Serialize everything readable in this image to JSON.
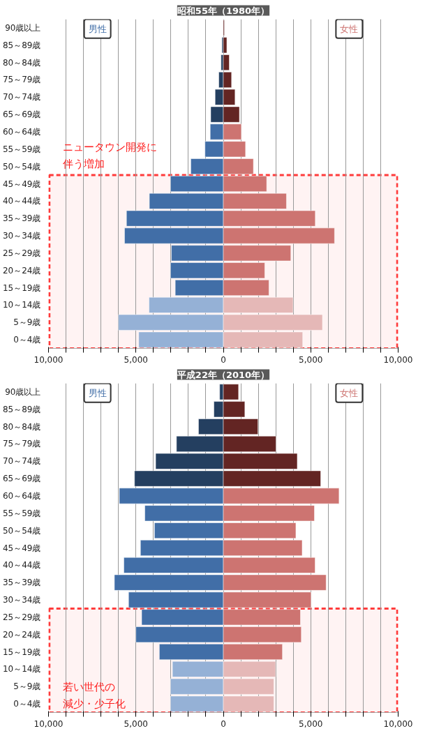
{
  "chart_data": [
    {
      "type": "bar",
      "orientation": "horizontal",
      "title": "昭和55年（1980年）",
      "categories": [
        "90歳以上",
        "85～89歳",
        "80～84歳",
        "75～79歳",
        "70～74歳",
        "65～69歳",
        "60～64歳",
        "55～59歳",
        "50～54歳",
        "45～49歳",
        "40～44歳",
        "35～39歳",
        "30～34歳",
        "25～29歳",
        "20～24歳",
        "15～19歳",
        "10～14歳",
        "5～9歳",
        "0～4歳"
      ],
      "series": [
        {
          "name": "男性",
          "values": [
            null,
            -80,
            -130,
            -260,
            -470,
            -720,
            -750,
            -1050,
            -1860,
            -3020,
            -4230,
            -5540,
            -5650,
            -2970,
            -3020,
            -2750,
            -4250,
            -6000,
            -4840
          ],
          "colors": [
            "#243f60",
            "#243f60",
            "#243f60",
            "#243f60",
            "#243f60",
            "#243f60",
            "#416ea7",
            "#416ea7",
            "#416ea7",
            "#416ea7",
            "#416ea7",
            "#416ea7",
            "#416ea7",
            "#416ea7",
            "#416ea7",
            "#416ea7",
            "#95b1d6",
            "#95b1d6",
            "#95b1d6"
          ]
        },
        {
          "name": "女性",
          "values": [
            60,
            200,
            340,
            470,
            670,
            920,
            1030,
            1270,
            1720,
            2480,
            3610,
            5260,
            6360,
            3860,
            2370,
            2610,
            3990,
            5670,
            4540
          ],
          "colors": [
            "#632523",
            "#632523",
            "#632523",
            "#632523",
            "#632523",
            "#632523",
            "#cd7471",
            "#cd7471",
            "#cd7471",
            "#cd7471",
            "#cd7471",
            "#cd7471",
            "#cd7471",
            "#cd7471",
            "#cd7471",
            "#cd7471",
            "#e5b8b7",
            "#e5b8b7",
            "#e5b8b7"
          ]
        }
      ],
      "xlim": [
        -10000,
        10000
      ],
      "xticks": [
        {
          "value": -10000,
          "label": "10,000"
        },
        {
          "value": -9000,
          "label": null
        },
        {
          "value": -8000,
          "label": null
        },
        {
          "value": -7000,
          "label": null
        },
        {
          "value": -6000,
          "label": null
        },
        {
          "value": -5000,
          "label": "5,000"
        },
        {
          "value": -4000,
          "label": null
        },
        {
          "value": -3000,
          "label": null
        },
        {
          "value": -2000,
          "label": null
        },
        {
          "value": -1000,
          "label": null
        },
        0,
        {
          "value": 1000,
          "label": null
        },
        {
          "value": 2000,
          "label": null
        },
        {
          "value": 3000,
          "label": null
        },
        {
          "value": 4000,
          "label": null
        },
        {
          "value": 5000,
          "label": "5,000"
        },
        {
          "value": 6000,
          "label": null
        },
        {
          "value": 7000,
          "label": null
        },
        {
          "value": 8000,
          "label": null
        },
        {
          "value": 9000,
          "label": null
        },
        {
          "value": 10000,
          "label": "10,000"
        }
      ],
      "grid": "x",
      "stacked": true,
      "bands": [
        {
          "axis": "y",
          "from": "45～49歳",
          "to": "0～4歳",
          "color": "#ff3b3b"
        }
      ],
      "annotations": [
        "ニュータウン開発に",
        "伴う増加"
      ]
    },
    {
      "type": "bar",
      "orientation": "horizontal",
      "title": "平成22年（2010年）",
      "categories": [
        "90歳以上",
        "85～89歳",
        "80～84歳",
        "75～79歳",
        "70～74歳",
        "65～69歳",
        "60～64歳",
        "55～59歳",
        "50～54歳",
        "45～49歳",
        "40～44歳",
        "35～39歳",
        "30～34歳",
        "25～29歳",
        "20～24歳",
        "15～19歳",
        "10～14歳",
        "5～9歳",
        "0～4歳"
      ],
      "series": [
        {
          "name": "男性",
          "values": [
            -210,
            -540,
            -1420,
            -2680,
            -3870,
            -5080,
            -5950,
            -4490,
            -3940,
            -4740,
            -5690,
            -6230,
            -5420,
            -4670,
            -5000,
            -3660,
            -2910,
            -3020,
            -3020
          ],
          "colors": [
            "#243f60",
            "#243f60",
            "#243f60",
            "#243f60",
            "#243f60",
            "#243f60",
            "#416ea7",
            "#416ea7",
            "#416ea7",
            "#416ea7",
            "#416ea7",
            "#416ea7",
            "#416ea7",
            "#416ea7",
            "#416ea7",
            "#416ea7",
            "#95b1d6",
            "#95b1d6",
            "#95b1d6"
          ]
        },
        {
          "name": "女性",
          "values": [
            870,
            1230,
            1980,
            3010,
            4230,
            5570,
            6620,
            5210,
            4150,
            4510,
            5250,
            5880,
            5020,
            4410,
            4460,
            3380,
            2990,
            2890,
            2890
          ],
          "colors": [
            "#632523",
            "#632523",
            "#632523",
            "#632523",
            "#632523",
            "#632523",
            "#cd7471",
            "#cd7471",
            "#cd7471",
            "#cd7471",
            "#cd7471",
            "#cd7471",
            "#cd7471",
            "#cd7471",
            "#cd7471",
            "#cd7471",
            "#e5b8b7",
            "#e5b8b7",
            "#e5b8b7"
          ]
        }
      ],
      "xlim": [
        -10000,
        10000
      ],
      "xticks": [
        {
          "value": -10000,
          "label": "10,000"
        },
        {
          "value": -9000,
          "label": null
        },
        {
          "value": -8000,
          "label": null
        },
        {
          "value": -7000,
          "label": null
        },
        {
          "value": -6000,
          "label": null
        },
        {
          "value": -5000,
          "label": "5,000"
        },
        {
          "value": -4000,
          "label": null
        },
        {
          "value": -3000,
          "label": null
        },
        {
          "value": -2000,
          "label": null
        },
        {
          "value": -1000,
          "label": null
        },
        0,
        {
          "value": 1000,
          "label": null
        },
        {
          "value": 2000,
          "label": null
        },
        {
          "value": 3000,
          "label": null
        },
        {
          "value": 4000,
          "label": null
        },
        {
          "value": 5000,
          "label": "5,000"
        },
        {
          "value": 6000,
          "label": null
        },
        {
          "value": 7000,
          "label": null
        },
        {
          "value": 8000,
          "label": null
        },
        {
          "value": 9000,
          "label": null
        },
        {
          "value": 10000,
          "label": "10,000"
        }
      ],
      "grid": "x",
      "stacked": true,
      "bands": [
        {
          "axis": "y",
          "from": "25～29歳",
          "to": "0～4歳",
          "color": "#ff3b3b"
        }
      ],
      "annotations": [
        "若い世代の",
        "減少・少子化"
      ]
    }
  ]
}
